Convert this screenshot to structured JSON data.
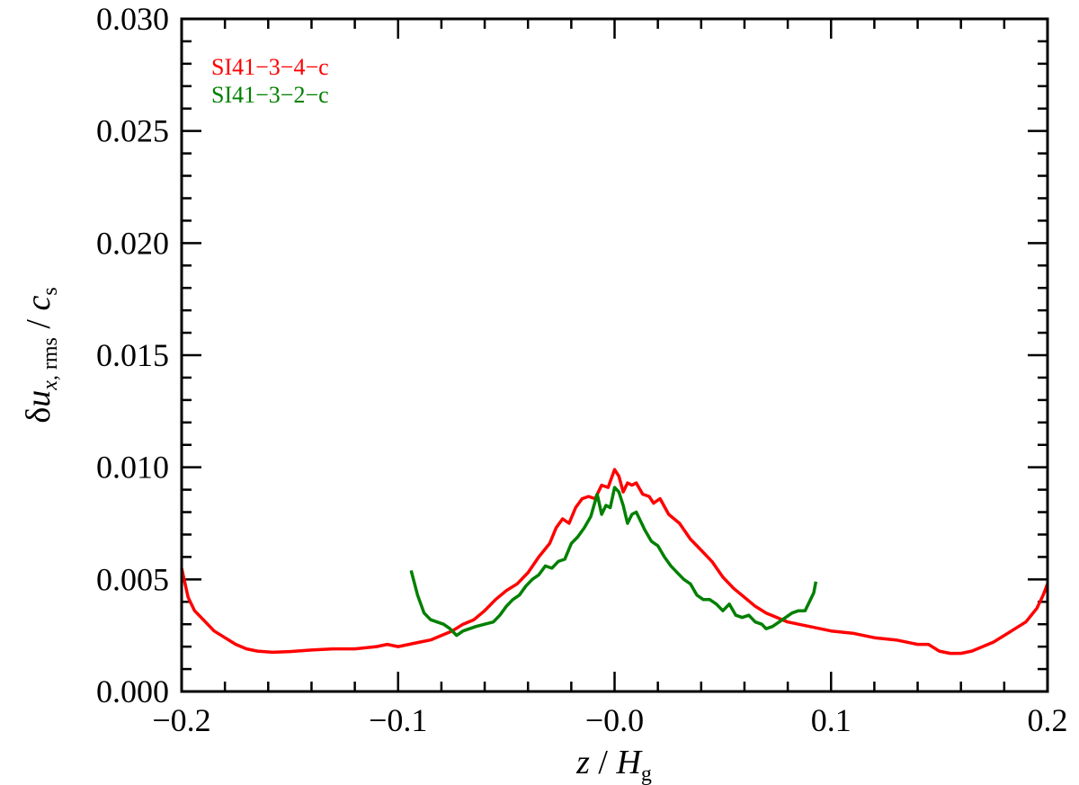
{
  "chart_data": {
    "type": "line",
    "xlabel": "z / H_g",
    "ylabel": "δu_x, rms / c_s",
    "xlim": [
      -0.2,
      0.2
    ],
    "ylim": [
      0.0,
      0.03
    ],
    "x_ticks": [
      "−0.2",
      "−0.1",
      "−0.0",
      "0.1",
      "0.2"
    ],
    "y_ticks": [
      "0.000",
      "0.005",
      "0.010",
      "0.015",
      "0.020",
      "0.025",
      "0.030"
    ],
    "legend_position": "top-left",
    "grid": false,
    "series": [
      {
        "name": "SI41−3−4−c",
        "color": "#ff0000",
        "points": [
          [
            -0.2,
            0.0055
          ],
          [
            -0.197,
            0.0042
          ],
          [
            -0.194,
            0.0036
          ],
          [
            -0.19,
            0.0032
          ],
          [
            -0.185,
            0.0027
          ],
          [
            -0.18,
            0.0024
          ],
          [
            -0.175,
            0.0021
          ],
          [
            -0.17,
            0.0019
          ],
          [
            -0.165,
            0.0018
          ],
          [
            -0.158,
            0.00175
          ],
          [
            -0.15,
            0.00178
          ],
          [
            -0.14,
            0.00185
          ],
          [
            -0.13,
            0.0019
          ],
          [
            -0.12,
            0.0019
          ],
          [
            -0.11,
            0.002
          ],
          [
            -0.105,
            0.0021
          ],
          [
            -0.1,
            0.002
          ],
          [
            -0.095,
            0.0021
          ],
          [
            -0.09,
            0.0022
          ],
          [
            -0.085,
            0.0023
          ],
          [
            -0.08,
            0.0025
          ],
          [
            -0.075,
            0.0027
          ],
          [
            -0.07,
            0.003
          ],
          [
            -0.065,
            0.0032
          ],
          [
            -0.06,
            0.0036
          ],
          [
            -0.055,
            0.0041
          ],
          [
            -0.05,
            0.0045
          ],
          [
            -0.045,
            0.0048
          ],
          [
            -0.04,
            0.0053
          ],
          [
            -0.035,
            0.006
          ],
          [
            -0.03,
            0.0066
          ],
          [
            -0.027,
            0.0073
          ],
          [
            -0.024,
            0.0077
          ],
          [
            -0.021,
            0.0075
          ],
          [
            -0.018,
            0.0082
          ],
          [
            -0.015,
            0.0086
          ],
          [
            -0.012,
            0.0087
          ],
          [
            -0.009,
            0.0086
          ],
          [
            -0.006,
            0.0092
          ],
          [
            -0.003,
            0.0091
          ],
          [
            0.0,
            0.0099
          ],
          [
            0.002,
            0.0096
          ],
          [
            0.004,
            0.0089
          ],
          [
            0.006,
            0.0093
          ],
          [
            0.008,
            0.0092
          ],
          [
            0.01,
            0.0093
          ],
          [
            0.013,
            0.0088
          ],
          [
            0.016,
            0.0087
          ],
          [
            0.018,
            0.0084
          ],
          [
            0.021,
            0.0086
          ],
          [
            0.025,
            0.0079
          ],
          [
            0.03,
            0.0075
          ],
          [
            0.035,
            0.0068
          ],
          [
            0.04,
            0.0063
          ],
          [
            0.045,
            0.0058
          ],
          [
            0.05,
            0.0051
          ],
          [
            0.055,
            0.0046
          ],
          [
            0.06,
            0.0042
          ],
          [
            0.065,
            0.0038
          ],
          [
            0.07,
            0.0035
          ],
          [
            0.075,
            0.0033
          ],
          [
            0.08,
            0.0031
          ],
          [
            0.085,
            0.003
          ],
          [
            0.09,
            0.0029
          ],
          [
            0.1,
            0.0027
          ],
          [
            0.11,
            0.0026
          ],
          [
            0.12,
            0.0024
          ],
          [
            0.13,
            0.0023
          ],
          [
            0.14,
            0.0021
          ],
          [
            0.145,
            0.0021
          ],
          [
            0.15,
            0.0018
          ],
          [
            0.155,
            0.0017
          ],
          [
            0.16,
            0.0017
          ],
          [
            0.165,
            0.0018
          ],
          [
            0.17,
            0.002
          ],
          [
            0.175,
            0.0022
          ],
          [
            0.18,
            0.0025
          ],
          [
            0.185,
            0.0028
          ],
          [
            0.19,
            0.0031
          ],
          [
            0.195,
            0.0037
          ],
          [
            0.198,
            0.0043
          ],
          [
            0.2,
            0.0048
          ]
        ]
      },
      {
        "name": "SI41−3−2−c",
        "color": "#008000",
        "points": [
          [
            -0.094,
            0.0054
          ],
          [
            -0.091,
            0.0043
          ],
          [
            -0.088,
            0.0035
          ],
          [
            -0.085,
            0.0032
          ],
          [
            -0.082,
            0.0031
          ],
          [
            -0.079,
            0.003
          ],
          [
            -0.076,
            0.0028
          ],
          [
            -0.073,
            0.0025
          ],
          [
            -0.07,
            0.0027
          ],
          [
            -0.067,
            0.0028
          ],
          [
            -0.064,
            0.0029
          ],
          [
            -0.06,
            0.003
          ],
          [
            -0.056,
            0.0031
          ],
          [
            -0.053,
            0.0034
          ],
          [
            -0.05,
            0.0038
          ],
          [
            -0.047,
            0.0041
          ],
          [
            -0.044,
            0.0043
          ],
          [
            -0.041,
            0.0047
          ],
          [
            -0.038,
            0.005
          ],
          [
            -0.035,
            0.0052
          ],
          [
            -0.032,
            0.0056
          ],
          [
            -0.029,
            0.0055
          ],
          [
            -0.026,
            0.0058
          ],
          [
            -0.023,
            0.0059
          ],
          [
            -0.02,
            0.0066
          ],
          [
            -0.017,
            0.0069
          ],
          [
            -0.014,
            0.0073
          ],
          [
            -0.011,
            0.0078
          ],
          [
            -0.008,
            0.0088
          ],
          [
            -0.006,
            0.0079
          ],
          [
            -0.004,
            0.0083
          ],
          [
            -0.002,
            0.0082
          ],
          [
            0.0,
            0.0091
          ],
          [
            0.002,
            0.0089
          ],
          [
            0.004,
            0.0083
          ],
          [
            0.006,
            0.0075
          ],
          [
            0.008,
            0.0079
          ],
          [
            0.01,
            0.008
          ],
          [
            0.012,
            0.0076
          ],
          [
            0.014,
            0.0072
          ],
          [
            0.017,
            0.0067
          ],
          [
            0.02,
            0.0065
          ],
          [
            0.023,
            0.006
          ],
          [
            0.026,
            0.0056
          ],
          [
            0.029,
            0.0053
          ],
          [
            0.032,
            0.005
          ],
          [
            0.035,
            0.0048
          ],
          [
            0.038,
            0.0043
          ],
          [
            0.041,
            0.0041
          ],
          [
            0.044,
            0.0041
          ],
          [
            0.047,
            0.0039
          ],
          [
            0.05,
            0.0036
          ],
          [
            0.053,
            0.0039
          ],
          [
            0.056,
            0.0034
          ],
          [
            0.059,
            0.0033
          ],
          [
            0.062,
            0.0034
          ],
          [
            0.065,
            0.0031
          ],
          [
            0.068,
            0.003
          ],
          [
            0.07,
            0.0028
          ],
          [
            0.073,
            0.0029
          ],
          [
            0.076,
            0.0031
          ],
          [
            0.079,
            0.0033
          ],
          [
            0.082,
            0.0035
          ],
          [
            0.085,
            0.0036
          ],
          [
            0.088,
            0.0036
          ],
          [
            0.09,
            0.004
          ],
          [
            0.092,
            0.0044
          ],
          [
            0.093,
            0.0049
          ]
        ]
      }
    ]
  }
}
